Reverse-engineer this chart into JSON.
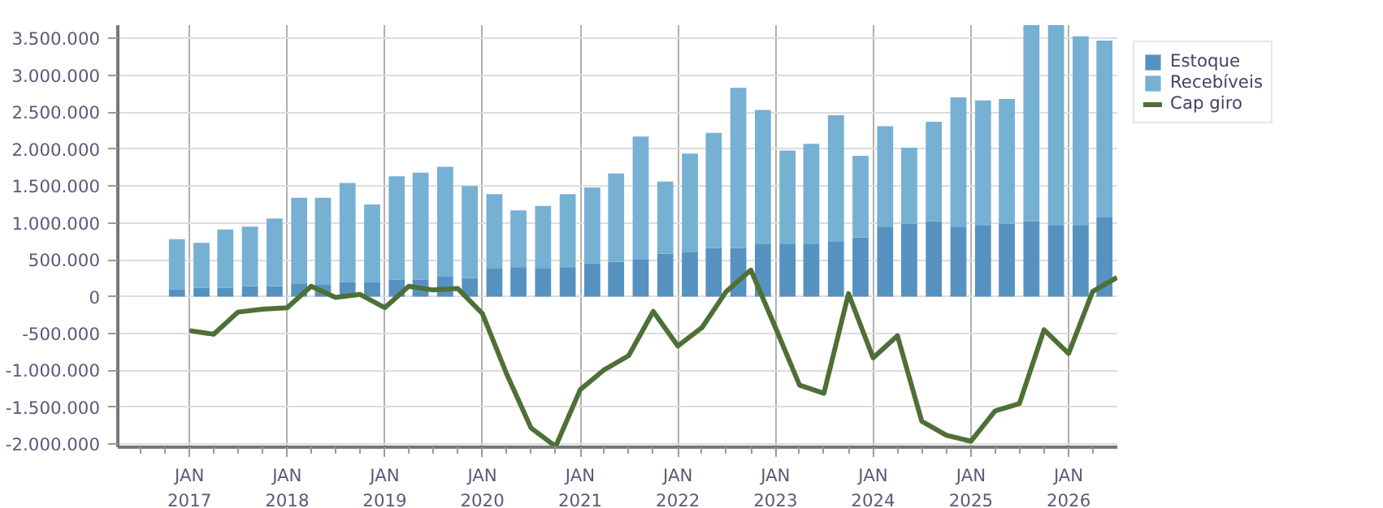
{
  "chart_data": {
    "type": "bar",
    "stacked": true,
    "series": [
      {
        "name": "Estoque",
        "color": "#5592c0",
        "x": [
          "2016-11-15",
          "2017-02-15",
          "2017-05-15",
          "2017-08-15",
          "2017-11-15",
          "2018-02-15",
          "2018-05-15",
          "2018-08-15",
          "2018-11-15",
          "2019-02-15",
          "2019-05-15",
          "2019-08-15",
          "2019-11-15",
          "2020-02-15",
          "2020-05-15",
          "2020-08-15",
          "2020-11-15",
          "2021-02-15",
          "2021-05-15",
          "2021-08-15",
          "2021-11-15",
          "2022-02-15",
          "2022-05-15",
          "2022-08-15",
          "2022-11-15",
          "2023-02-15",
          "2023-05-15",
          "2023-08-15",
          "2023-11-15",
          "2024-02-15",
          "2024-05-15",
          "2024-08-15",
          "2024-11-15",
          "2025-02-15",
          "2025-05-15",
          "2025-08-15",
          "2025-11-15",
          "2026-02-15",
          "2026-05-15"
        ],
        "values": [
          100000,
          120000,
          120000,
          140000,
          140000,
          180000,
          160000,
          200000,
          200000,
          230000,
          230000,
          270000,
          250000,
          380000,
          400000,
          380000,
          400000,
          450000,
          470000,
          510000,
          580000,
          600000,
          660000,
          660000,
          710000,
          710000,
          710000,
          750000,
          800000,
          950000,
          990000,
          1020000,
          950000,
          970000,
          990000,
          1020000,
          970000,
          970000,
          1080000
        ]
      },
      {
        "name": "Recebíveis",
        "color": "#76b0d3",
        "x": [
          "2016-11-15",
          "2017-02-15",
          "2017-05-15",
          "2017-08-15",
          "2017-11-15",
          "2018-02-15",
          "2018-05-15",
          "2018-08-15",
          "2018-11-15",
          "2019-02-15",
          "2019-05-15",
          "2019-08-15",
          "2019-11-15",
          "2020-02-15",
          "2020-05-15",
          "2020-08-15",
          "2020-11-15",
          "2021-02-15",
          "2021-05-15",
          "2021-08-15",
          "2021-11-15",
          "2022-02-15",
          "2022-05-15",
          "2022-08-15",
          "2022-11-15",
          "2023-02-15",
          "2023-05-15",
          "2023-08-15",
          "2023-11-15",
          "2024-02-15",
          "2024-05-15",
          "2024-08-15",
          "2024-11-15",
          "2025-02-15",
          "2025-05-15",
          "2025-08-15",
          "2025-11-15",
          "2026-02-15",
          "2026-05-15"
        ],
        "values": [
          680000,
          610000,
          790000,
          810000,
          920000,
          1160000,
          1180000,
          1340000,
          1050000,
          1400000,
          1450000,
          1490000,
          1250000,
          1010000,
          770000,
          850000,
          990000,
          1030000,
          1200000,
          1660000,
          980000,
          1340000,
          1560000,
          2170000,
          1820000,
          1270000,
          1360000,
          1710000,
          1110000,
          1360000,
          1030000,
          1350000,
          1750000,
          1690000,
          1690000,
          2660000,
          2710000,
          2560000,
          2390000
        ]
      },
      {
        "name": "Cap giro",
        "type": "line",
        "color": "#4e7036",
        "x": [
          "2017-01-01",
          "2017-04-01",
          "2017-07-01",
          "2017-10-01",
          "2018-01-01",
          "2018-04-01",
          "2018-07-01",
          "2018-10-01",
          "2019-01-01",
          "2019-04-01",
          "2019-07-01",
          "2019-10-01",
          "2020-01-01",
          "2020-04-01",
          "2020-07-01",
          "2020-10-01",
          "2021-01-01",
          "2021-04-01",
          "2021-07-01",
          "2021-10-01",
          "2022-01-01",
          "2022-04-01",
          "2022-07-01",
          "2022-10-01",
          "2023-01-01",
          "2023-04-01",
          "2023-07-01",
          "2023-10-01",
          "2024-01-01",
          "2024-04-01",
          "2024-07-01",
          "2024-10-01",
          "2025-01-01",
          "2025-04-01",
          "2025-07-01",
          "2025-10-01",
          "2026-01-01",
          "2026-04-01",
          "2026-07-01"
        ],
        "values": [
          -460000,
          -510000,
          -210000,
          -170000,
          -150000,
          140000,
          -10000,
          30000,
          -150000,
          140000,
          90000,
          110000,
          -230000,
          -1050000,
          -1780000,
          -2030000,
          -1260000,
          -990000,
          -800000,
          -200000,
          -670000,
          -420000,
          70000,
          360000,
          -420000,
          -1200000,
          -1310000,
          40000,
          -830000,
          -530000,
          -1690000,
          -1880000,
          -1960000,
          -1550000,
          -1450000,
          -450000,
          -770000,
          70000,
          260000
        ]
      }
    ],
    "xlim": [
      "2016-04-08",
      "2026-07-02"
    ],
    "xticks": [
      {
        "value": "2017-01-01",
        "label": "JAN\n2017"
      },
      {
        "value": "2018-01-01",
        "label": "JAN\n2018"
      },
      {
        "value": "2019-01-01",
        "label": "JAN\n2019"
      },
      {
        "value": "2020-01-01",
        "label": "JAN\n2020"
      },
      {
        "value": "2021-01-01",
        "label": "JAN\n2021"
      },
      {
        "value": "2022-01-01",
        "label": "JAN\n2022"
      },
      {
        "value": "2023-01-01",
        "label": "JAN\n2023"
      },
      {
        "value": "2024-01-01",
        "label": "JAN\n2024"
      },
      {
        "value": "2025-01-01",
        "label": "JAN\n2025"
      },
      {
        "value": "2026-01-01",
        "label": "JAN\n2026"
      },
      {
        "value": "2016-07-01",
        "label": null
      },
      {
        "value": "2016-10-01",
        "label": null
      },
      {
        "value": "2017-04-01",
        "label": null
      },
      {
        "value": "2017-07-01",
        "label": null
      },
      {
        "value": "2017-10-01",
        "label": null
      },
      {
        "value": "2018-04-01",
        "label": null
      },
      {
        "value": "2018-07-01",
        "label": null
      },
      {
        "value": "2018-10-01",
        "label": null
      },
      {
        "value": "2019-04-01",
        "label": null
      },
      {
        "value": "2019-07-01",
        "label": null
      },
      {
        "value": "2019-10-01",
        "label": null
      },
      {
        "value": "2020-04-01",
        "label": null
      },
      {
        "value": "2020-07-01",
        "label": null
      },
      {
        "value": "2020-10-01",
        "label": null
      },
      {
        "value": "2021-04-01",
        "label": null
      },
      {
        "value": "2021-07-01",
        "label": null
      },
      {
        "value": "2021-10-01",
        "label": null
      },
      {
        "value": "2022-04-01",
        "label": null
      },
      {
        "value": "2022-07-01",
        "label": null
      },
      {
        "value": "2022-10-01",
        "label": null
      },
      {
        "value": "2023-04-01",
        "label": null
      },
      {
        "value": "2023-07-01",
        "label": null
      },
      {
        "value": "2023-10-01",
        "label": null
      },
      {
        "value": "2024-04-01",
        "label": null
      },
      {
        "value": "2024-07-01",
        "label": null
      },
      {
        "value": "2024-10-01",
        "label": null
      },
      {
        "value": "2025-04-01",
        "label": null
      },
      {
        "value": "2025-07-01",
        "label": null
      },
      {
        "value": "2025-10-01",
        "label": null
      },
      {
        "value": "2026-04-01",
        "label": null
      }
    ],
    "ylim": [
      -2040000,
      3680000
    ],
    "yticks": [
      {
        "value": -2000000,
        "label": "-2.000.000"
      },
      {
        "value": -1500000,
        "label": "-1.500.000"
      },
      {
        "value": -1000000,
        "label": "-1.000.000"
      },
      {
        "value": -500000,
        "label": "-500.000"
      },
      {
        "value": 0,
        "label": "0"
      },
      {
        "value": 500000,
        "label": "500.000"
      },
      {
        "value": 1000000,
        "label": "1.000.000"
      },
      {
        "value": 1500000,
        "label": "1.500.000"
      },
      {
        "value": 2000000,
        "label": "2.000.000"
      },
      {
        "value": 2500000,
        "label": "2.500.000"
      },
      {
        "value": 3000000,
        "label": "3.000.000"
      },
      {
        "value": 3500000,
        "label": "3.500.000"
      }
    ],
    "grid": true,
    "legend": "top right",
    "marker": "none",
    "line_style": "solid"
  }
}
